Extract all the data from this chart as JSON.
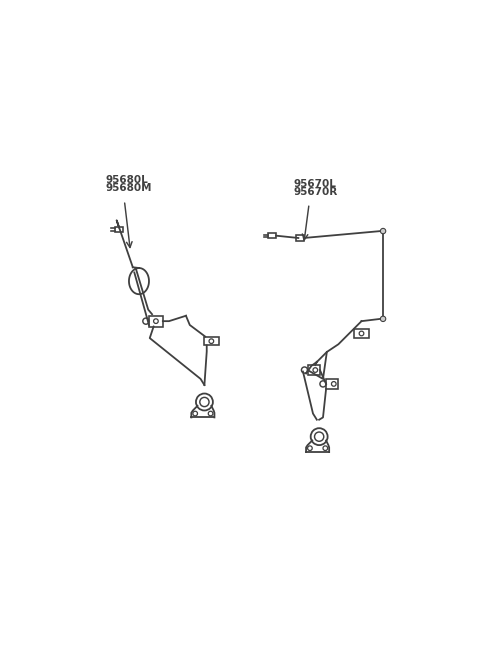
{
  "bg_color": "#ffffff",
  "line_color": "#404040",
  "label_color": "#404040",
  "label_left": [
    "95680L",
    "95680M"
  ],
  "label_right": [
    "95670L",
    "95670R"
  ],
  "figsize": [
    4.8,
    6.55
  ],
  "dpi": 100,
  "lw": 1.3
}
